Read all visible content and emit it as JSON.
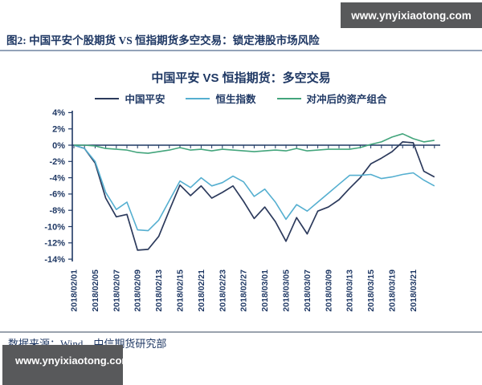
{
  "watermark": {
    "text": "www.ynyixiaotong.com"
  },
  "caption": "图2: 中国平安个股期货 VS 恒指期货多空交易：锁定港股市场风险",
  "source_note": "数据来源：Wind　中信期货研究部",
  "colors": {
    "navy_text": "#1F3864",
    "axis": "#1F3864",
    "watermark_bg": "#58595B",
    "watermark_fg": "#FFFFFF",
    "divider_top": "#93A2B8",
    "divider_bottom": "#9AA2AE"
  },
  "chart_data": {
    "type": "line",
    "title": "中国平安 VS 恒指期货：多空交易",
    "xlabel": "",
    "ylabel": "",
    "ylim": [
      -14,
      4
    ],
    "grid": false,
    "legend_position": "top",
    "y_ticks": [
      "4%",
      "2%",
      "0%",
      "-2%",
      "-4%",
      "-6%",
      "-8%",
      "-10%",
      "-12%",
      "-14%"
    ],
    "label_every": 2,
    "x_tick_labels": [
      "2018/02/01",
      "2018/02/05",
      "2018/02/07",
      "2018/02/09",
      "2018/02/13",
      "2018/02/15",
      "2018/02/21",
      "2018/02/23",
      "2018/02/27",
      "2018/03/01",
      "2018/03/05",
      "2018/03/07",
      "2018/03/09",
      "2018/03/13",
      "2018/03/15",
      "2018/03/19",
      "2018/03/21"
    ],
    "series": [
      {
        "id": "pingan",
        "name": "中国平安",
        "color": "#2C3A5C",
        "unit": "%",
        "values": [
          0.0,
          -0.4,
          -2.2,
          -6.5,
          -8.8,
          -8.5,
          -12.9,
          -12.8,
          -11.2,
          -8.0,
          -4.9,
          -6.2,
          -5.0,
          -6.5,
          -5.8,
          -5.0,
          -6.9,
          -9.0,
          -7.6,
          -9.4,
          -11.8,
          -8.9,
          -10.9,
          -8.1,
          -7.6,
          -6.7,
          -5.3,
          -4.0,
          -2.3,
          -1.6,
          -0.8,
          0.4,
          0.3,
          -3.2,
          -3.9
        ]
      },
      {
        "id": "hsi",
        "name": "恒生指数",
        "color": "#55AFD0",
        "unit": "%",
        "values": [
          0.0,
          -0.4,
          -2.0,
          -5.8,
          -7.9,
          -7.0,
          -10.4,
          -10.5,
          -9.2,
          -6.8,
          -4.4,
          -5.2,
          -4.0,
          -5.0,
          -4.6,
          -3.8,
          -4.5,
          -6.3,
          -5.4,
          -7.0,
          -9.1,
          -7.3,
          -8.1,
          -7.0,
          -5.9,
          -4.8,
          -3.7,
          -3.7,
          -3.6,
          -4.1,
          -3.9,
          -3.6,
          -3.4,
          -4.3,
          -5.0
        ]
      },
      {
        "id": "hedged",
        "name": "对冲后的资产组合",
        "color": "#43A57C",
        "unit": "%",
        "values": [
          0.0,
          0.0,
          -0.1,
          -0.4,
          -0.5,
          -0.6,
          -0.9,
          -1.0,
          -0.8,
          -0.6,
          -0.3,
          -0.6,
          -0.5,
          -0.7,
          -0.5,
          -0.6,
          -0.7,
          -0.8,
          -0.7,
          -0.6,
          -0.7,
          -0.4,
          -0.7,
          -0.6,
          -0.5,
          -0.5,
          -0.5,
          -0.3,
          0.1,
          0.4,
          1.0,
          1.4,
          0.8,
          0.4,
          0.6
        ]
      }
    ]
  }
}
